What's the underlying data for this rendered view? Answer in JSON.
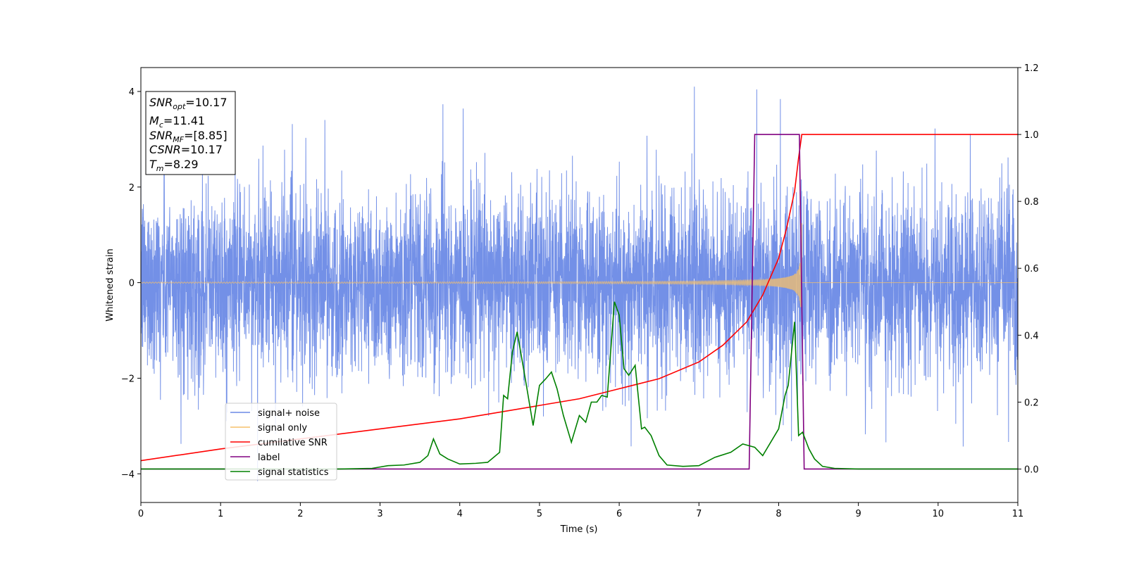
{
  "chart_data": {
    "type": "line",
    "xlabel": "Time (s)",
    "ylabel": "Whitened strain",
    "xlim": [
      0,
      11
    ],
    "ylim_left": [
      -4.6,
      4.5
    ],
    "ylim_right": [
      -0.1,
      1.2
    ],
    "x_ticks": [
      "0",
      "1",
      "2",
      "3",
      "4",
      "5",
      "6",
      "7",
      "8",
      "9",
      "10",
      "11"
    ],
    "y_ticks_left": [
      "−4",
      "−2",
      "0",
      "2",
      "4"
    ],
    "y_ticks_right": [
      "0.0",
      "0.2",
      "0.4",
      "0.6",
      "0.8",
      "1.0",
      "1.2"
    ],
    "grid": false,
    "legend_position": "lower-left",
    "annotation": {
      "snr_opt": {
        "base": "SNR",
        "sub": "opt",
        "value": "=10.17"
      },
      "mc": {
        "base": "M",
        "sub": "c",
        "value": "=11.41"
      },
      "snr_mf": {
        "base": "SNR",
        "sub": "MF",
        "value": "=[8.85]"
      },
      "csnr": {
        "base": "CSNR",
        "value": "=10.17"
      },
      "tm": {
        "base": "T",
        "sub": "m",
        "value": "=8.29"
      }
    },
    "series": [
      {
        "name": "signal+ noise",
        "axis": "left",
        "color": "#6b8ae6",
        "description_only": "gaussian noise band, roughly -2.2 to 2.2 with spikes to about ±4, plus chirp signal"
      },
      {
        "name": "signal only",
        "axis": "left",
        "color": "#f5c06b",
        "chirp": {
          "start": 0,
          "merger": 8.29,
          "end_amplitude": 1.3,
          "start_amplitude": 0.02
        }
      },
      {
        "name": "cumilative SNR",
        "axis": "right",
        "color": "#ff0000",
        "x": [
          0,
          1,
          2,
          3,
          4,
          5,
          5.5,
          6,
          6.5,
          7,
          7.3,
          7.6,
          7.8,
          8.0,
          8.1,
          8.2,
          8.25,
          8.29,
          11
        ],
        "y": [
          0.025,
          0.06,
          0.09,
          0.12,
          0.15,
          0.19,
          0.21,
          0.24,
          0.27,
          0.32,
          0.37,
          0.44,
          0.52,
          0.63,
          0.72,
          0.83,
          0.93,
          1.0,
          1.0
        ]
      },
      {
        "name": "label",
        "axis": "right",
        "color": "#800080",
        "x": [
          0,
          7.63,
          7.7,
          8.26,
          8.32,
          11
        ],
        "y": [
          0,
          0,
          1.0,
          1.0,
          0,
          0
        ]
      },
      {
        "name": "signal statistics",
        "axis": "right",
        "color": "#008000",
        "x": [
          0,
          1,
          2,
          2.5,
          2.9,
          3.1,
          3.3,
          3.5,
          3.6,
          3.67,
          3.75,
          3.85,
          4.0,
          4.2,
          4.35,
          4.5,
          4.55,
          4.6,
          4.66,
          4.72,
          4.8,
          4.85,
          4.92,
          5.0,
          5.08,
          5.15,
          5.22,
          5.3,
          5.4,
          5.5,
          5.58,
          5.65,
          5.72,
          5.78,
          5.85,
          5.94,
          6.0,
          6.06,
          6.12,
          6.2,
          6.28,
          6.32,
          6.4,
          6.5,
          6.6,
          6.8,
          7.0,
          7.2,
          7.4,
          7.55,
          7.7,
          7.8,
          7.9,
          8.0,
          8.08,
          8.12,
          8.2,
          8.25,
          8.3,
          8.38,
          8.45,
          8.55,
          8.7,
          9.0,
          10.0,
          11.0
        ],
        "y": [
          0.0,
          0.0,
          0.0,
          0.0,
          0.002,
          0.01,
          0.012,
          0.02,
          0.04,
          0.09,
          0.045,
          0.03,
          0.015,
          0.017,
          0.02,
          0.05,
          0.22,
          0.21,
          0.35,
          0.41,
          0.3,
          0.23,
          0.13,
          0.25,
          0.27,
          0.29,
          0.24,
          0.16,
          0.08,
          0.16,
          0.14,
          0.2,
          0.2,
          0.22,
          0.215,
          0.5,
          0.46,
          0.3,
          0.28,
          0.31,
          0.12,
          0.125,
          0.1,
          0.04,
          0.012,
          0.008,
          0.01,
          0.035,
          0.05,
          0.075,
          0.065,
          0.04,
          0.08,
          0.12,
          0.22,
          0.25,
          0.44,
          0.1,
          0.11,
          0.06,
          0.03,
          0.008,
          0.002,
          0.0,
          0.0,
          0.0
        ]
      }
    ]
  }
}
